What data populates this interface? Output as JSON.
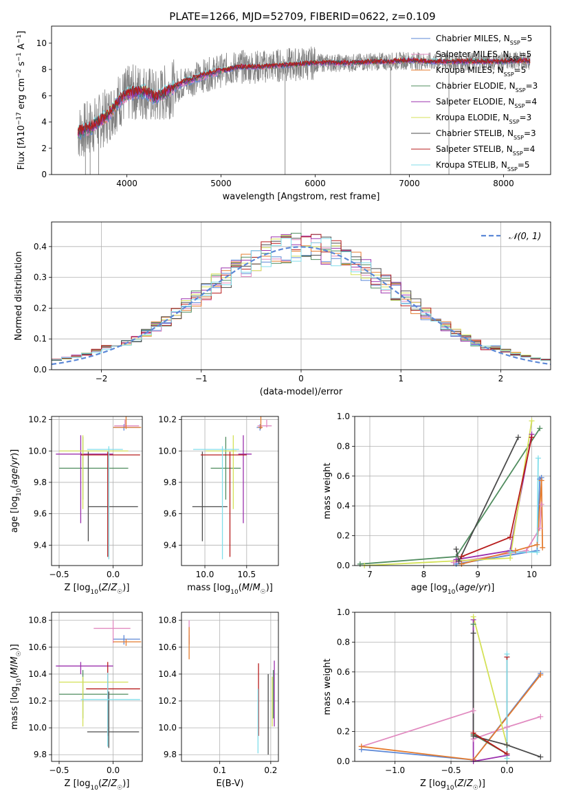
{
  "figure_title": "PLATE=1266, MJD=52709, FIBERID=0622, z=0.109",
  "colors": {
    "axes": "#000000",
    "grid": "#b0b0b0",
    "data_gray": "#808080",
    "normal_curve": "#5b87d6"
  },
  "chart_data": [
    {
      "id": "spectrum",
      "type": "line",
      "title": "",
      "xlabel": "wavelength [Angstrom, rest frame]",
      "ylabel_html": "Flux [f<tspan font-style='italic'>λ</tspan>10<tspan baseline-shift='super' font-size='9'>−17</tspan> erg cm<tspan baseline-shift='super' font-size='9'>−2</tspan> s<tspan baseline-shift='super' font-size='9'>−1</tspan> A<tspan baseline-shift='super' font-size='9'>−1</tspan>]",
      "xlim": [
        3200,
        8500
      ],
      "ylim": [
        0,
        11.3
      ],
      "xticks": [
        4000,
        5000,
        6000,
        7000,
        8000
      ],
      "yticks": [
        0,
        2,
        4,
        6,
        8,
        10
      ],
      "grid": false,
      "legend_position": "upper right",
      "data_envelope": {
        "x": [
          3480,
          3600,
          3700,
          3800,
          3900,
          4000,
          4100,
          4200,
          4300,
          4400,
          4600,
          4800,
          5000,
          5200,
          5400,
          5600,
          5800,
          6000,
          6200,
          6400,
          6600,
          6800,
          7000,
          7200,
          7400,
          7600,
          7800,
          8000,
          8200,
          8280
        ],
        "y": [
          3.2,
          3.5,
          4.0,
          4.5,
          5.5,
          6.1,
          6.3,
          6.3,
          5.8,
          6.2,
          7.0,
          7.5,
          7.9,
          8.2,
          8.2,
          8.3,
          8.4,
          8.5,
          8.5,
          8.5,
          8.6,
          8.6,
          8.7,
          8.6,
          8.6,
          8.6,
          8.6,
          8.6,
          8.7,
          8.6
        ]
      },
      "models": [
        {
          "name": "Chabrier MILES, N<tspan font-size='8' baseline-shift='sub'>SSP</tspan>=5",
          "color": "#5b87d6"
        },
        {
          "name": "Salpeter MILES, N<tspan font-size='8' baseline-shift='sub'>SSP</tspan>=5",
          "color": "#e18ac0"
        },
        {
          "name": "Kroupa MILES, N<tspan font-size='8' baseline-shift='sub'>SSP</tspan>=5",
          "color": "#e47b2e"
        },
        {
          "name": "Chabrier ELODIE, N<tspan font-size='8' baseline-shift='sub'>SSP</tspan>=3",
          "color": "#4f8c5e"
        },
        {
          "name": "Salpeter ELODIE, N<tspan font-size='8' baseline-shift='sub'>SSP</tspan>=4",
          "color": "#9b30ad"
        },
        {
          "name": "Kroupa ELODIE, N<tspan font-size='8' baseline-shift='sub'>SSP</tspan>=3",
          "color": "#d4e157"
        },
        {
          "name": "Chabrier STELIB, N<tspan font-size='8' baseline-shift='sub'>SSP</tspan>=3",
          "color": "#4a4a4a"
        },
        {
          "name": "Salpeter STELIB, N<tspan font-size='8' baseline-shift='sub'>SSP</tspan>=4",
          "color": "#b71c1c"
        },
        {
          "name": "Kroupa STELIB, N<tspan font-size='8' baseline-shift='sub'>SSP</tspan>=5",
          "color": "#80deea"
        }
      ]
    },
    {
      "id": "residuals",
      "type": "step",
      "xlabel": "(data-model)/error",
      "ylabel": "Normed distribution",
      "xlim": [
        -2.5,
        2.5
      ],
      "ylim": [
        0,
        0.48
      ],
      "xticks": [
        -2,
        -1,
        0,
        1,
        2
      ],
      "yticks": [
        0.0,
        0.1,
        0.2,
        0.3,
        0.4
      ],
      "grid": true,
      "legend": "𝒩(0, 1)",
      "legend_position": "upper right",
      "normal": {
        "mu": 0,
        "sigma": 1
      },
      "bin_width": 0.1,
      "bin_start": -2.5
    },
    {
      "id": "age_vs_Z",
      "type": "errorbar",
      "xlabel": "Z [log<tspan font-size='9' baseline-shift='sub'>10</tspan>(<tspan font-style='italic'>Z</tspan>/<tspan font-style='italic'>Z</tspan><tspan font-size='9' baseline-shift='sub'>☉</tspan>)]",
      "ylabel": "age  [log<tspan font-size='9' baseline-shift='sub'>10</tspan>(<tspan font-style='italic'>age</tspan>/<tspan font-style='italic'>yr</tspan>)]",
      "xlim": [
        -0.57,
        0.27
      ],
      "ylim": [
        9.27,
        10.22
      ],
      "xticks": [
        -0.5,
        0.0
      ],
      "yticks": [
        9.4,
        9.6,
        9.8,
        10.0,
        10.2
      ],
      "grid": true,
      "points": [
        {
          "x": 0.1,
          "xe": [
            0.1,
            0.15
          ],
          "y": 10.15,
          "ye": [
            0.02,
            0.02
          ],
          "color": "#5b87d6"
        },
        {
          "x": 0.11,
          "xe": [
            0.1,
            0.13
          ],
          "y": 10.16,
          "ye": [
            0.01,
            0.04
          ],
          "color": "#e18ac0"
        },
        {
          "x": 0.12,
          "xe": [
            0.12,
            0.14
          ],
          "y": 10.15,
          "ye": [
            0.01,
            0.1
          ],
          "color": "#e47b2e"
        },
        {
          "x": -0.28,
          "xe": [
            0.22,
            0.42
          ],
          "y": 9.89,
          "ye": [
            0.2,
            0.2
          ],
          "color": "#4f8c5e"
        },
        {
          "x": -0.3,
          "xe": [
            0.23,
            0.3
          ],
          "y": 9.98,
          "ye": [
            0.44,
            0.12
          ],
          "color": "#9b30ad"
        },
        {
          "x": -0.28,
          "xe": [
            0.22,
            0.42
          ],
          "y": 10.0,
          "ye": [
            0.37,
            0.1
          ],
          "color": "#d4e157"
        },
        {
          "x": -0.23,
          "xe": [
            0.0,
            0.46
          ],
          "y": 9.645,
          "ye": [
            0.22,
            0.35
          ],
          "color": "#4a4a4a"
        },
        {
          "x": -0.05,
          "xe": [
            0.25,
            0.3
          ],
          "y": 9.975,
          "ye": [
            0.65,
            0.02
          ],
          "color": "#b71c1c"
        },
        {
          "x": -0.04,
          "xe": [
            0.2,
            0.13
          ],
          "y": 10.01,
          "ye": [
            0.7,
            0.02
          ],
          "color": "#80deea"
        }
      ]
    },
    {
      "id": "age_vs_mass",
      "type": "errorbar",
      "xlabel": "mass [log<tspan font-size='9' baseline-shift='sub'>10</tspan>(<tspan font-style='italic'>M</tspan>/<tspan font-style='italic'>M</tspan><tspan font-size='9' baseline-shift='sub'>☉</tspan>)]",
      "ylabel": "",
      "xlim": [
        9.72,
        10.88
      ],
      "ylim": [
        9.27,
        10.22
      ],
      "xticks": [
        10.0,
        10.5
      ],
      "yticks": [
        9.4,
        9.6,
        9.8,
        10.0,
        10.2
      ],
      "grid": true,
      "points": [
        {
          "x": 10.66,
          "xe": [
            0.04,
            0.03
          ],
          "y": 10.15,
          "ye": [
            0.02,
            0.02
          ],
          "color": "#5b87d6"
        },
        {
          "x": 10.74,
          "xe": [
            0.11,
            0.06
          ],
          "y": 10.16,
          "ye": [
            0.01,
            0.04
          ],
          "color": "#e18ac0"
        },
        {
          "x": 10.67,
          "xe": [
            0.03,
            0.02
          ],
          "y": 10.15,
          "ye": [
            0.01,
            0.1
          ],
          "color": "#e47b2e"
        },
        {
          "x": 10.25,
          "xe": [
            0.18,
            0.18
          ],
          "y": 9.89,
          "ye": [
            0.2,
            0.2
          ],
          "color": "#4f8c5e"
        },
        {
          "x": 10.46,
          "xe": [
            0.06,
            0.1
          ],
          "y": 9.98,
          "ye": [
            0.44,
            0.12
          ],
          "color": "#9b30ad"
        },
        {
          "x": 10.34,
          "xe": [
            0.33,
            0.04
          ],
          "y": 10.0,
          "ye": [
            0.37,
            0.1
          ],
          "color": "#d4e157"
        },
        {
          "x": 9.97,
          "xe": [
            0.12,
            0.3
          ],
          "y": 9.645,
          "ye": [
            0.22,
            0.35
          ],
          "color": "#4a4a4a"
        },
        {
          "x": 10.3,
          "xe": [
            0.35,
            0.2
          ],
          "y": 9.975,
          "ye": [
            0.65,
            0.02
          ],
          "color": "#b71c1c"
        },
        {
          "x": 10.21,
          "xe": [
            0.35,
            0.2
          ],
          "y": 10.01,
          "ye": [
            0.7,
            0.02
          ],
          "color": "#80deea"
        }
      ]
    },
    {
      "id": "weight_vs_age",
      "type": "line",
      "xlabel": "age  [log<tspan font-size='9' baseline-shift='sub'>10</tspan>(<tspan font-style='italic'>age</tspan>/<tspan font-style='italic'>yr</tspan>)]",
      "ylabel": "mass weight",
      "xlim": [
        6.72,
        10.35
      ],
      "ylim": [
        0.0,
        1.0
      ],
      "xticks": [
        7,
        8,
        9,
        10
      ],
      "yticks": [
        0.0,
        0.2,
        0.4,
        0.6,
        0.8,
        1.0
      ],
      "grid": true,
      "series": [
        {
          "color": "#5b87d6",
          "x": [
            8.6,
            10.1,
            10.15,
            10.18
          ],
          "y": [
            0.01,
            0.1,
            0.58,
            0.59
          ]
        },
        {
          "color": "#e18ac0",
          "x": [
            8.55,
            9.9,
            10.15,
            10.18
          ],
          "y": [
            0.02,
            0.1,
            0.25,
            0.41
          ]
        },
        {
          "color": "#e47b2e",
          "x": [
            8.7,
            9.7,
            10.1,
            10.18,
            10.2
          ],
          "y": [
            0.01,
            0.1,
            0.14,
            0.57,
            0.12
          ]
        },
        {
          "color": "#4f8c5e",
          "x": [
            6.82,
            8.6,
            10.15
          ],
          "y": [
            0.01,
            0.06,
            0.92
          ]
        },
        {
          "color": "#9b30ad",
          "x": [
            8.6,
            9.6,
            10.0
          ],
          "y": [
            0.04,
            0.1,
            0.88
          ]
        },
        {
          "color": "#d4e157",
          "x": [
            6.9,
            9.6,
            10.0
          ],
          "y": [
            0.0,
            0.05,
            0.97
          ]
        },
        {
          "color": "#4a4a4a",
          "x": [
            8.6,
            8.65,
            9.75
          ],
          "y": [
            0.11,
            0.03,
            0.86
          ]
        },
        {
          "color": "#b71c1c",
          "x": [
            8.7,
            9.6,
            10.0
          ],
          "y": [
            0.06,
            0.19,
            0.86
          ]
        },
        {
          "color": "#80deea",
          "x": [
            9.6,
            10.1,
            10.12
          ],
          "y": [
            0.09,
            0.09,
            0.72
          ]
        }
      ]
    },
    {
      "id": "mass_vs_Z",
      "type": "errorbar",
      "xlabel": "Z [log<tspan font-size='9' baseline-shift='sub'>10</tspan>(<tspan font-style='italic'>Z</tspan>/<tspan font-style='italic'>Z</tspan><tspan font-size='9' baseline-shift='sub'>☉</tspan>)]",
      "ylabel": "mass [log<tspan font-size='9' baseline-shift='sub'>10</tspan>(<tspan font-style='italic'>M</tspan>/<tspan font-style='italic'>M</tspan><tspan font-size='9' baseline-shift='sub'>☉</tspan>)]",
      "xlim": [
        -0.57,
        0.27
      ],
      "ylim": [
        9.75,
        10.86
      ],
      "xticks": [
        -0.5,
        0.0
      ],
      "yticks": [
        9.8,
        10.0,
        10.2,
        10.4,
        10.6,
        10.8
      ],
      "grid": true,
      "points": [
        {
          "x": 0.1,
          "xe": [
            0.1,
            0.15
          ],
          "y": 10.66,
          "ye": [
            0.04,
            0.03
          ],
          "color": "#5b87d6"
        },
        {
          "x": 0.0,
          "xe": [
            0.18,
            0.16
          ],
          "y": 10.74,
          "ye": [
            0.11,
            0.06
          ],
          "color": "#e18ac0"
        },
        {
          "x": 0.12,
          "xe": [
            0.12,
            0.14
          ],
          "y": 10.64,
          "ye": [
            0.03,
            0.02
          ],
          "color": "#e47b2e"
        },
        {
          "x": -0.28,
          "xe": [
            0.22,
            0.42
          ],
          "y": 10.25,
          "ye": [
            0.18,
            0.18
          ],
          "color": "#4f8c5e"
        },
        {
          "x": -0.3,
          "xe": [
            0.23,
            0.3
          ],
          "y": 10.46,
          "ye": [
            0.06,
            0.03
          ],
          "color": "#9b30ad"
        },
        {
          "x": -0.28,
          "xe": [
            0.22,
            0.42
          ],
          "y": 10.34,
          "ye": [
            0.33,
            0.04
          ],
          "color": "#d4e157"
        },
        {
          "x": -0.04,
          "xe": [
            0.2,
            0.28
          ],
          "y": 9.97,
          "ye": [
            0.12,
            0.3
          ],
          "color": "#4a4a4a"
        },
        {
          "x": -0.05,
          "xe": [
            0.2,
            0.3
          ],
          "y": 10.29,
          "ye": [
            0.35,
            0.2
          ],
          "color": "#b71c1c"
        },
        {
          "x": -0.05,
          "xe": [
            0.25,
            0.3
          ],
          "y": 10.21,
          "ye": [
            0.35,
            0.2
          ],
          "color": "#80deea"
        }
      ]
    },
    {
      "id": "mass_vs_ebv",
      "type": "errorbar",
      "xlabel": "E(B-V)",
      "ylabel": "",
      "xlim": [
        0.025,
        0.215
      ],
      "ylim": [
        9.75,
        10.86
      ],
      "xticks": [
        0.1,
        0.2
      ],
      "yticks": [
        9.8,
        10.0,
        10.2,
        10.4,
        10.6,
        10.8
      ],
      "grid": true,
      "points": [
        {
          "x": 0.04,
          "y": 10.66,
          "ye": [
            0.04,
            0.03
          ],
          "color": "#5b87d6"
        },
        {
          "x": 0.04,
          "y": 10.74,
          "ye": [
            0.11,
            0.06
          ],
          "color": "#e18ac0"
        },
        {
          "x": 0.04,
          "y": 10.64,
          "ye": [
            0.13,
            0.11
          ],
          "color": "#e47b2e"
        },
        {
          "x": 0.205,
          "y": 10.25,
          "ye": [
            0.18,
            0.18
          ],
          "color": "#4f8c5e"
        },
        {
          "x": 0.207,
          "y": 10.34,
          "ye": [
            0.33,
            0.16
          ],
          "color": "#9b30ad"
        },
        {
          "x": 0.203,
          "y": 10.34,
          "ye": [
            0.33,
            0.04
          ],
          "color": "#d4e157"
        },
        {
          "x": 0.195,
          "y": 10.2,
          "ye": [
            0.4,
            0.2
          ],
          "color": "#4a4a4a"
        },
        {
          "x": 0.176,
          "y": 10.29,
          "ye": [
            0.35,
            0.19
          ],
          "color": "#b71c1c"
        },
        {
          "x": 0.175,
          "y": 10.21,
          "ye": [
            0.4,
            0.08
          ],
          "color": "#80deea"
        }
      ]
    },
    {
      "id": "weight_vs_Z",
      "type": "line",
      "xlabel": "Z [log<tspan font-size='9' baseline-shift='sub'>10</tspan>(<tspan font-style='italic'>Z</tspan>/<tspan font-style='italic'>Z</tspan><tspan font-size='9' baseline-shift='sub'>☉</tspan>)]",
      "ylabel": "mass weight",
      "xlim": [
        -1.36,
        0.39
      ],
      "ylim": [
        0.0,
        1.0
      ],
      "xticks": [
        -1.0,
        -0.5,
        0.0
      ],
      "yticks": [
        0.0,
        0.2,
        0.4,
        0.6,
        0.8,
        1.0
      ],
      "grid": true,
      "series": [
        {
          "color": "#5b87d6",
          "x": [
            -1.3,
            -0.3,
            0.3
          ],
          "y": [
            0.08,
            0.01,
            0.59
          ]
        },
        {
          "color": "#e18ac0",
          "x": [
            -1.3,
            -0.3,
            -0.3,
            0.0,
            0.3
          ],
          "y": [
            0.1,
            0.34,
            0.15,
            0.23,
            0.3
          ]
        },
        {
          "color": "#e47b2e",
          "x": [
            -1.3,
            -0.3,
            0.3
          ],
          "y": [
            0.1,
            0.01,
            0.58
          ]
        },
        {
          "color": "#4f8c5e",
          "x": [
            -0.3,
            -0.3,
            0.0
          ],
          "y": [
            0.92,
            0.18,
            0.05
          ]
        },
        {
          "color": "#9b30ad",
          "x": [
            -0.3,
            -0.3,
            0.0
          ],
          "y": [
            0.95,
            0.0,
            0.04
          ]
        },
        {
          "color": "#d4e157",
          "x": [
            -0.3,
            0.0,
            0.0
          ],
          "y": [
            0.97,
            0.11,
            0.02
          ]
        },
        {
          "color": "#4a4a4a",
          "x": [
            -0.3,
            -0.3,
            0.0,
            0.3
          ],
          "y": [
            0.86,
            0.17,
            0.11,
            0.03
          ]
        },
        {
          "color": "#b71c1c",
          "x": [
            -0.3,
            0.0,
            0.0
          ],
          "y": [
            0.19,
            0.05,
            0.7
          ]
        },
        {
          "color": "#80deea",
          "x": [
            0.0,
            0.0
          ],
          "y": [
            0.72,
            0.02
          ]
        }
      ]
    }
  ]
}
